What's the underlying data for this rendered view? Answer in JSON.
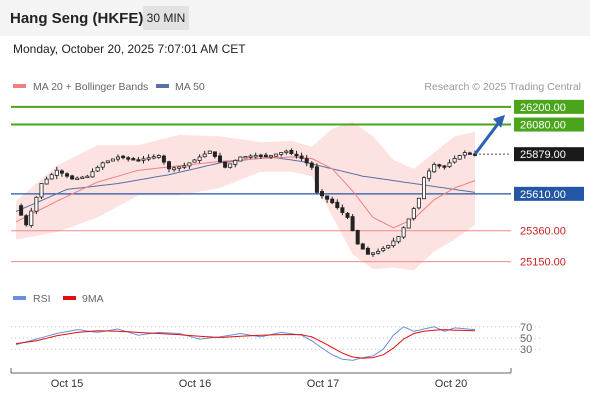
{
  "header": {
    "title": "Hang Seng (HKFE)",
    "interval": "30 MIN",
    "datetime": "Monday, October 20, 2025 7:07:01 AM CET"
  },
  "legend": {
    "ma20_label": "MA 20 + Bollinger Bands",
    "ma50_label": "MA 50",
    "rsi_label": "RSI",
    "rsi_ma_label": "9MA"
  },
  "copyright": "Research © 2025 Trading Central",
  "colors": {
    "resistance": "#4aa51c",
    "current": "#1a1a1a",
    "pivot": "#2456a6",
    "support": "#f08888",
    "ma20": "#f08080",
    "ma50": "#5a6fa3",
    "band": "#fde2e2",
    "rsi": "#6b8fdc",
    "rsi_ma": "#e01010",
    "arrow": "#2a61b5"
  },
  "chart_data": [
    {
      "type": "candlestick",
      "title": "Hang Seng (HKFE)",
      "timeframe": "30 MIN",
      "ylim": [
        25080,
        26260
      ],
      "x_ticks": [
        "Oct 15",
        "Oct 16",
        "Oct 17",
        "Oct 20"
      ],
      "levels": [
        {
          "value": 26200.0,
          "label": "26200.00",
          "kind": "resistance"
        },
        {
          "value": 26080.0,
          "label": "26080.00",
          "kind": "resistance"
        },
        {
          "value": 25879.0,
          "label": "25879.00",
          "kind": "current"
        },
        {
          "value": 25610.0,
          "label": "25610.00",
          "kind": "pivot"
        },
        {
          "value": 25360.0,
          "label": "25360.00",
          "kind": "support"
        },
        {
          "value": 25150.0,
          "label": "25150.00",
          "kind": "support"
        }
      ],
      "series": [
        {
          "name": "MA 20 + Bollinger Bands",
          "anchors": [
            [
              0,
              25420
            ],
            [
              8,
              25560
            ],
            [
              16,
              25690
            ],
            [
              24,
              25770
            ],
            [
              32,
              25800
            ],
            [
              40,
              25830
            ],
            [
              48,
              25850
            ],
            [
              54,
              25860
            ],
            [
              58,
              25850
            ],
            [
              62,
              25780
            ],
            [
              66,
              25630
            ],
            [
              70,
              25450
            ],
            [
              74,
              25380
            ],
            [
              78,
              25440
            ],
            [
              82,
              25570
            ],
            [
              86,
              25650
            ],
            [
              90,
              25700
            ]
          ]
        },
        {
          "name": "Bollinger Upper",
          "anchors": [
            [
              0,
              25560
            ],
            [
              8,
              25800
            ],
            [
              16,
              25940
            ],
            [
              24,
              25940
            ],
            [
              32,
              26010
            ],
            [
              40,
              26000
            ],
            [
              48,
              25960
            ],
            [
              54,
              25970
            ],
            [
              58,
              25930
            ],
            [
              62,
              26050
            ],
            [
              66,
              26100
            ],
            [
              70,
              26000
            ],
            [
              74,
              25840
            ],
            [
              78,
              25780
            ],
            [
              82,
              25890
            ],
            [
              86,
              26000
            ],
            [
              90,
              26030
            ]
          ]
        },
        {
          "name": "Bollinger Lower",
          "anchors": [
            [
              0,
              25300
            ],
            [
              8,
              25350
            ],
            [
              16,
              25450
            ],
            [
              24,
              25600
            ],
            [
              32,
              25600
            ],
            [
              40,
              25650
            ],
            [
              48,
              25760
            ],
            [
              54,
              25760
            ],
            [
              58,
              25730
            ],
            [
              62,
              25460
            ],
            [
              66,
              25200
            ],
            [
              70,
              25100
            ],
            [
              74,
              25110
            ],
            [
              78,
              25090
            ],
            [
              82,
              25220
            ],
            [
              86,
              25300
            ],
            [
              90,
              25400
            ]
          ]
        },
        {
          "name": "MA 50",
          "anchors": [
            [
              0,
              25490
            ],
            [
              10,
              25640
            ],
            [
              20,
              25680
            ],
            [
              30,
              25740
            ],
            [
              40,
              25820
            ],
            [
              50,
              25860
            ],
            [
              56,
              25830
            ],
            [
              62,
              25780
            ],
            [
              68,
              25730
            ],
            [
              74,
              25700
            ],
            [
              80,
              25670
            ],
            [
              86,
              25640
            ],
            [
              90,
              25620
            ]
          ]
        },
        {
          "name": "Price",
          "anchors": [
            [
              0,
              25530
            ],
            [
              2,
              25400
            ],
            [
              5,
              25680
            ],
            [
              8,
              25770
            ],
            [
              11,
              25710
            ],
            [
              14,
              25730
            ],
            [
              17,
              25820
            ],
            [
              20,
              25860
            ],
            [
              24,
              25840
            ],
            [
              28,
              25870
            ],
            [
              30,
              25780
            ],
            [
              33,
              25800
            ],
            [
              36,
              25860
            ],
            [
              38,
              25900
            ],
            [
              41,
              25790
            ],
            [
              44,
              25860
            ],
            [
              47,
              25870
            ],
            [
              50,
              25870
            ],
            [
              53,
              25900
            ],
            [
              56,
              25850
            ],
            [
              58,
              25790
            ],
            [
              59,
              25620
            ],
            [
              62,
              25550
            ],
            [
              65,
              25450
            ],
            [
              67,
              25270
            ],
            [
              69,
              25200
            ],
            [
              71,
              25220
            ],
            [
              73,
              25260
            ],
            [
              75,
              25320
            ],
            [
              77,
              25440
            ],
            [
              79,
              25580
            ],
            [
              80,
              25720
            ],
            [
              82,
              25810
            ],
            [
              84,
              25790
            ],
            [
              86,
              25850
            ],
            [
              88,
              25890
            ],
            [
              90,
              25879
            ]
          ]
        }
      ]
    },
    {
      "type": "line",
      "title": "RSI",
      "ylim": [
        0,
        100
      ],
      "y_ticks": [
        70,
        50,
        30
      ],
      "series": [
        {
          "name": "RSI",
          "anchors": [
            [
              0,
              38
            ],
            [
              4,
              48
            ],
            [
              8,
              58
            ],
            [
              12,
              65
            ],
            [
              16,
              60
            ],
            [
              20,
              66
            ],
            [
              24,
              55
            ],
            [
              28,
              60
            ],
            [
              32,
              58
            ],
            [
              36,
              48
            ],
            [
              40,
              52
            ],
            [
              44,
              58
            ],
            [
              48,
              52
            ],
            [
              52,
              60
            ],
            [
              56,
              55
            ],
            [
              58,
              45
            ],
            [
              60,
              32
            ],
            [
              62,
              20
            ],
            [
              64,
              12
            ],
            [
              66,
              10
            ],
            [
              68,
              15
            ],
            [
              70,
              18
            ],
            [
              72,
              30
            ],
            [
              74,
              55
            ],
            [
              76,
              70
            ],
            [
              78,
              62
            ],
            [
              80,
              66
            ],
            [
              82,
              70
            ],
            [
              84,
              62
            ],
            [
              86,
              68
            ],
            [
              90,
              65
            ]
          ]
        },
        {
          "name": "9MA",
          "anchors": [
            [
              0,
              40
            ],
            [
              4,
              45
            ],
            [
              8,
              54
            ],
            [
              12,
              60
            ],
            [
              16,
              63
            ],
            [
              20,
              62
            ],
            [
              24,
              60
            ],
            [
              28,
              58
            ],
            [
              32,
              56
            ],
            [
              36,
              53
            ],
            [
              40,
              51
            ],
            [
              44,
              53
            ],
            [
              48,
              55
            ],
            [
              52,
              56
            ],
            [
              56,
              56
            ],
            [
              58,
              52
            ],
            [
              60,
              43
            ],
            [
              62,
              33
            ],
            [
              64,
              23
            ],
            [
              66,
              16
            ],
            [
              68,
              14
            ],
            [
              70,
              15
            ],
            [
              72,
              20
            ],
            [
              74,
              32
            ],
            [
              76,
              48
            ],
            [
              78,
              58
            ],
            [
              80,
              62
            ],
            [
              82,
              64
            ],
            [
              84,
              65
            ],
            [
              86,
              64
            ],
            [
              90,
              63
            ]
          ]
        }
      ]
    }
  ]
}
